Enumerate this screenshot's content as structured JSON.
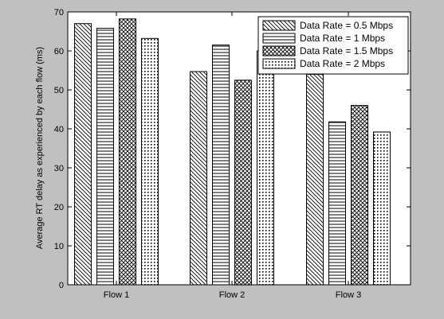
{
  "chart_data": {
    "type": "bar",
    "categories": [
      "Flow 1",
      "Flow 2",
      "Flow 3"
    ],
    "series": [
      {
        "name": "Data Rate = 0.5 Mbps",
        "values": [
          67,
          54.7,
          54
        ],
        "pattern": "diagonal"
      },
      {
        "name": "Data Rate = 1 Mbps",
        "values": [
          65.8,
          61.5,
          41.8
        ],
        "pattern": "horizontal"
      },
      {
        "name": "Data Rate = 1.5 Mbps",
        "values": [
          68.2,
          52.5,
          46
        ],
        "pattern": "crosshatch"
      },
      {
        "name": "Data Rate = 2 Mbps",
        "values": [
          63.2,
          60,
          39.2
        ],
        "pattern": "dots"
      }
    ],
    "ylabel": "Average RT delay as experienced by each flow (ms)",
    "xlabel": "",
    "title": "",
    "ylim": [
      0,
      70
    ],
    "yticks": [
      0,
      10,
      20,
      30,
      40,
      50,
      60,
      70
    ],
    "grid": false,
    "legend_position": "top-right",
    "colors": {
      "figure_bg": "#c0c0c0",
      "plot_bg": "#ffffff",
      "ink": "#000000"
    }
  }
}
